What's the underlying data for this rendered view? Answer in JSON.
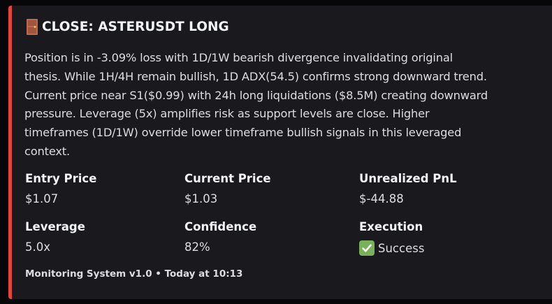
{
  "embed": {
    "accent_color": "#e3443c",
    "title_icon": "door-icon",
    "title": "CLOSE: ASTERUSDT LONG",
    "description": "Position is in -3.09% loss with 1D/1W bearish divergence invalidating original\nthesis. While 1H/4H remain bullish, 1D ADX(54.5) confirms strong downward trend.\nCurrent price near S1($0.99) with 24h long liquidations ($8.5M) creating downward\npressure. Leverage (5x) amplifies risk as support levels are close. Higher\ntimeframes (1D/1W) override lower timeframe bullish signals in this leveraged\ncontext.",
    "fields": {
      "entry_price": {
        "name": "Entry Price",
        "value": "$1.07"
      },
      "current_price": {
        "name": "Current Price",
        "value": "$1.03"
      },
      "unrealized_pnl": {
        "name": "Unrealized PnL",
        "value": "$-44.88"
      },
      "leverage": {
        "name": "Leverage",
        "value": "5.0x"
      },
      "confidence": {
        "name": "Confidence",
        "value": "82%"
      },
      "execution": {
        "name": "Execution",
        "value": "Success",
        "icon": "check-mark-icon"
      }
    },
    "footer": "Monitoring System v1.0 • Today at 10:13"
  }
}
